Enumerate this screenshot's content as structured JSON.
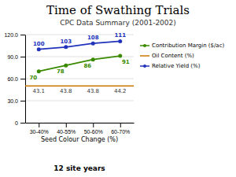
{
  "chart_data": {
    "type": "line",
    "title": "Time of Swathing Trials",
    "subtitle": "CPC Data Summary (2001-2002)",
    "annotations": [
      "12 site years"
    ],
    "xlabel": "Seed Colour Change (%)",
    "categories": [
      "30-40%",
      "40-55%",
      "50-60%",
      "60-70%"
    ],
    "series": [
      {
        "name": "Contribution Margin ($/ac)",
        "color": "#3a8a00",
        "marker": "circle",
        "values": [
          70,
          78,
          86,
          91
        ]
      },
      {
        "name": "Oil Content (%)",
        "color": "#cc7700",
        "type": "hline",
        "y": 50.0,
        "values": [
          43.1,
          43.8,
          43.8,
          44.2
        ]
      },
      {
        "name": "Relative Yield (%)",
        "color": "#2233bb",
        "marker": "circle",
        "values": [
          100,
          103,
          108,
          111
        ]
      }
    ],
    "ylim": [
      0,
      120
    ],
    "yticks": [
      0,
      {
        "value": 30.0,
        "label": "30.0"
      },
      {
        "value": 60.0,
        "label": "60.0"
      },
      {
        "value": 90.0,
        "label": "90.0"
      },
      {
        "value": 120.0,
        "label": "120.0"
      }
    ],
    "grid": true,
    "legend": "right",
    "data_labels": true
  }
}
